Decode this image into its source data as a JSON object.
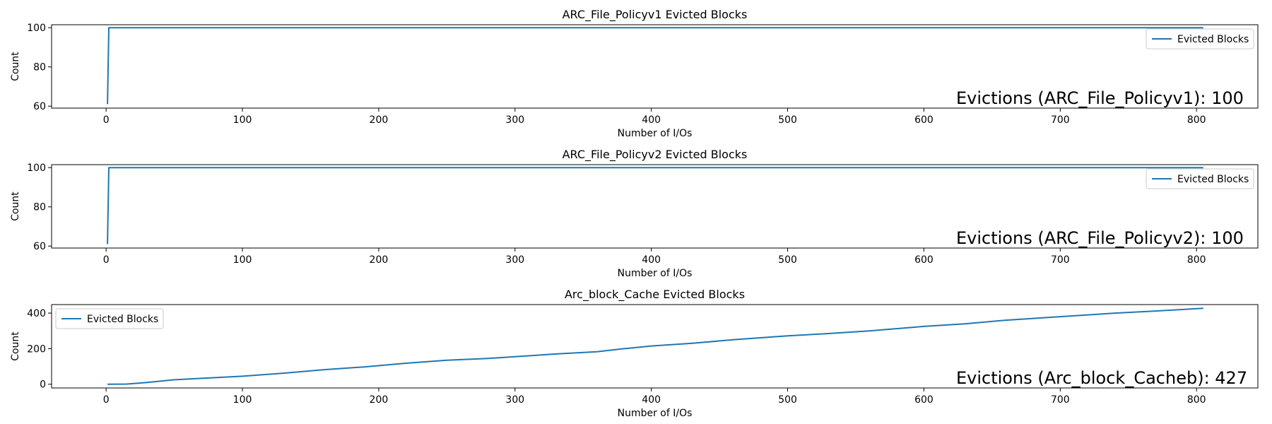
{
  "chart_data": [
    {
      "type": "line",
      "title": "ARC_File_Policyv1 Evicted Blocks",
      "xlabel": "Number of I/Os",
      "ylabel": "Count",
      "xlim": [
        -40,
        845
      ],
      "ylim": [
        59,
        101.5
      ],
      "xticks": [
        0,
        100,
        200,
        300,
        400,
        500,
        600,
        700,
        800
      ],
      "yticks": [
        60,
        80,
        100
      ],
      "legend": {
        "position": "top-right",
        "label": "Evicted Blocks"
      },
      "annotation": "Evictions (ARC_File_Policyv1): 100",
      "color": "#1f77b4",
      "series": [
        {
          "name": "Evicted Blocks",
          "x": [
            1,
            2,
            805
          ],
          "y": [
            61,
            100,
            100
          ]
        }
      ]
    },
    {
      "type": "line",
      "title": "ARC_File_Policyv2 Evicted Blocks",
      "xlabel": "Number of I/Os",
      "ylabel": "Count",
      "xlim": [
        -40,
        845
      ],
      "ylim": [
        59,
        101.5
      ],
      "xticks": [
        0,
        100,
        200,
        300,
        400,
        500,
        600,
        700,
        800
      ],
      "yticks": [
        60,
        80,
        100
      ],
      "legend": {
        "position": "top-right",
        "label": "Evicted Blocks"
      },
      "annotation": "Evictions (ARC_File_Policyv2): 100",
      "color": "#1f77b4",
      "series": [
        {
          "name": "Evicted Blocks",
          "x": [
            1,
            2,
            805
          ],
          "y": [
            61,
            100,
            100
          ]
        }
      ]
    },
    {
      "type": "line",
      "title": "Arc_block_Cache Evicted Blocks",
      "xlabel": "Number of I/Os",
      "ylabel": "Count",
      "xlim": [
        -40,
        845
      ],
      "ylim": [
        -21,
        448
      ],
      "xticks": [
        0,
        100,
        200,
        300,
        400,
        500,
        600,
        700,
        800
      ],
      "yticks": [
        0,
        200,
        400
      ],
      "legend": {
        "position": "top-left",
        "label": "Evicted Blocks"
      },
      "annotation": "Evictions (Arc_block_Cacheb): 427",
      "color": "#1f77b4",
      "series": [
        {
          "name": "Evicted Blocks",
          "x": [
            1,
            15,
            30,
            50,
            70,
            100,
            130,
            160,
            190,
            220,
            250,
            280,
            300,
            330,
            360,
            380,
            400,
            430,
            460,
            500,
            530,
            560,
            600,
            630,
            660,
            700,
            740,
            770,
            805
          ],
          "y": [
            0,
            1,
            10,
            25,
            33,
            45,
            62,
            82,
            98,
            118,
            135,
            145,
            155,
            170,
            183,
            200,
            215,
            230,
            250,
            272,
            285,
            300,
            325,
            340,
            360,
            380,
            400,
            412,
            427
          ]
        }
      ]
    }
  ]
}
